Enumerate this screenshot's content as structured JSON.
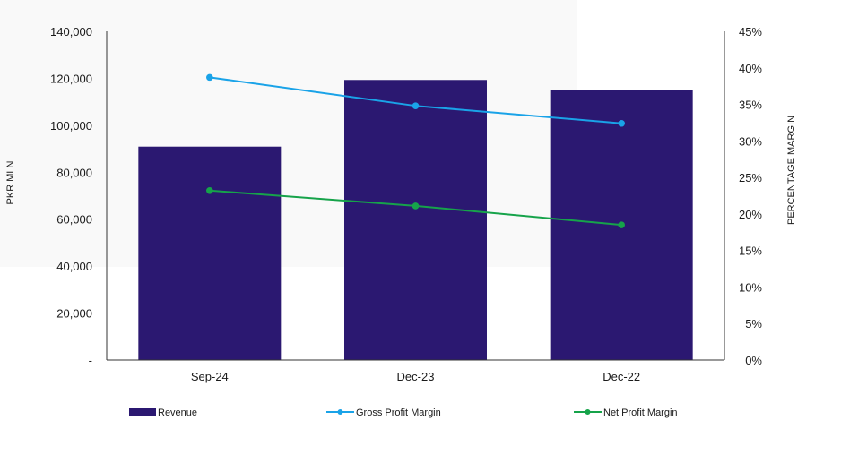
{
  "chart_data": {
    "type": "bar",
    "categories": [
      "Sep-24",
      "Dec-23",
      "Dec-22"
    ],
    "series": [
      {
        "name": "Revenue",
        "type": "bar",
        "axis": "left",
        "color": "#2b1871",
        "values": [
          90900,
          119300,
          115200
        ]
      },
      {
        "name": "Gross Profit Margin",
        "type": "line",
        "axis": "right",
        "color": "#1aa3e8",
        "values": [
          38.7,
          34.8,
          32.4
        ]
      },
      {
        "name": "Net Profit Margin",
        "type": "line",
        "axis": "right",
        "color": "#16a34a",
        "values": [
          23.2,
          21.1,
          18.5
        ]
      }
    ],
    "ylabel": "PKR MLN",
    "y2label": "PERCENTAGE MARGIN",
    "ylim": [
      0,
      140000
    ],
    "y2lim": [
      0,
      45
    ],
    "yticks": [
      "-",
      "20,000",
      "40,000",
      "60,000",
      "80,000",
      "100,000",
      "120,000",
      "140,000"
    ],
    "y2ticks": [
      "0%",
      "5%",
      "10%",
      "15%",
      "20%",
      "25%",
      "30%",
      "35%",
      "40%",
      "45%"
    ],
    "grid": false,
    "legend_position": "bottom"
  }
}
